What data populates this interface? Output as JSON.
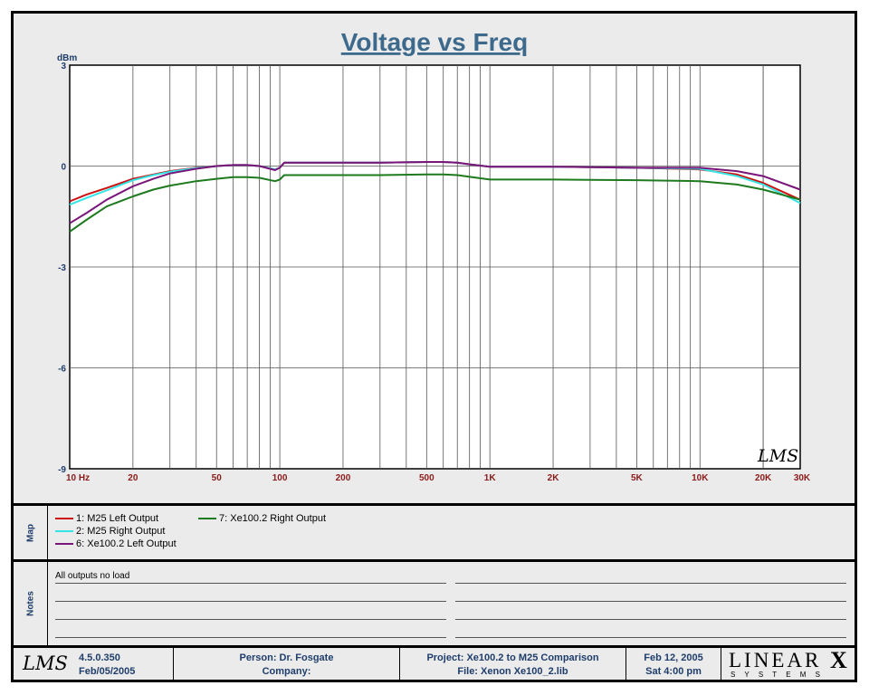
{
  "chart_data": {
    "type": "line",
    "title": "Voltage vs Freq",
    "ylabel": "dBm",
    "xscale": "log",
    "xlim": [
      10,
      30000
    ],
    "ylim": [
      -9,
      3
    ],
    "grid": true,
    "yticks": [
      3,
      0,
      -3,
      -6,
      -9
    ],
    "ytick_labels": [
      "3",
      "0",
      "-3",
      "-6",
      "-9"
    ],
    "xtick_values": [
      10,
      20,
      50,
      100,
      200,
      500,
      1000,
      2000,
      5000,
      10000,
      20000,
      30000
    ],
    "xtick_labels": [
      "10  Hz",
      "20",
      "50",
      "100",
      "200",
      "500",
      "1K",
      "2K",
      "5K",
      "10K",
      "20K",
      "30K"
    ],
    "colors": {
      "m25_left": "#cc1111",
      "m25_right": "#33e5e5",
      "xe_left": "#7a157a",
      "xe_right": "#1e7a1e",
      "title": "#3d6a8c",
      "axis_labels": "#1f3d6b",
      "x_labels": "#8b1a1a"
    },
    "series": [
      {
        "name": "1: M25 Left Output",
        "color": "#cc1111",
        "x": [
          10,
          12,
          15,
          20,
          25,
          30,
          40,
          50,
          60,
          70,
          80,
          95,
          100,
          105,
          150,
          200,
          300,
          500,
          600,
          700,
          800,
          1000,
          2000,
          5000,
          10000,
          15000,
          20000,
          30000
        ],
        "y": [
          -1.05,
          -0.85,
          -0.65,
          -0.38,
          -0.25,
          -0.15,
          -0.05,
          0.0,
          0.03,
          0.03,
          0.0,
          -0.1,
          -0.05,
          0.1,
          0.1,
          0.1,
          0.1,
          0.12,
          0.12,
          0.1,
          0.05,
          -0.02,
          -0.02,
          -0.05,
          -0.1,
          -0.25,
          -0.5,
          -1.0
        ]
      },
      {
        "name": "2: M25 Right Output",
        "color": "#33e5e5",
        "x": [
          10,
          12,
          15,
          20,
          25,
          30,
          40,
          50,
          60,
          70,
          80,
          95,
          100,
          105,
          150,
          200,
          300,
          500,
          600,
          700,
          800,
          1000,
          2000,
          5000,
          10000,
          15000,
          20000,
          30000
        ],
        "y": [
          -1.15,
          -0.95,
          -0.72,
          -0.42,
          -0.27,
          -0.17,
          -0.06,
          0.0,
          0.03,
          0.03,
          0.0,
          -0.1,
          -0.05,
          0.1,
          0.1,
          0.1,
          0.1,
          0.12,
          0.12,
          0.1,
          0.05,
          -0.02,
          -0.02,
          -0.05,
          -0.08,
          -0.3,
          -0.55,
          -1.1
        ]
      },
      {
        "name": "6: Xe100.2 Left Output",
        "color": "#7a157a",
        "x": [
          10,
          12,
          15,
          20,
          25,
          30,
          40,
          50,
          60,
          70,
          80,
          95,
          100,
          105,
          150,
          200,
          300,
          500,
          600,
          700,
          800,
          1000,
          2000,
          5000,
          10000,
          15000,
          20000,
          30000
        ],
        "y": [
          -1.7,
          -1.4,
          -1.0,
          -0.6,
          -0.38,
          -0.22,
          -0.08,
          0.0,
          0.03,
          0.03,
          0.0,
          -0.12,
          -0.05,
          0.1,
          0.1,
          0.1,
          0.1,
          0.12,
          0.12,
          0.1,
          0.05,
          -0.02,
          -0.02,
          -0.05,
          -0.05,
          -0.15,
          -0.3,
          -0.7
        ]
      },
      {
        "name": "7: Xe100.2 Right Output",
        "color": "#1e7a1e",
        "x": [
          10,
          12,
          15,
          20,
          25,
          30,
          40,
          50,
          60,
          70,
          80,
          95,
          100,
          105,
          150,
          200,
          300,
          500,
          600,
          700,
          800,
          1000,
          2000,
          5000,
          10000,
          15000,
          20000,
          30000
        ],
        "y": [
          -1.95,
          -1.6,
          -1.2,
          -0.9,
          -0.7,
          -0.58,
          -0.45,
          -0.38,
          -0.33,
          -0.33,
          -0.35,
          -0.45,
          -0.4,
          -0.27,
          -0.27,
          -0.27,
          -0.27,
          -0.25,
          -0.25,
          -0.27,
          -0.32,
          -0.4,
          -0.4,
          -0.42,
          -0.45,
          -0.55,
          -0.7,
          -1.0
        ]
      }
    ]
  },
  "legend": [
    {
      "label": "1: M25 Left Output",
      "color": "#cc1111"
    },
    {
      "label": "2: M25 Right Output",
      "color": "#33e5e5"
    },
    {
      "label": "6: Xe100.2 Left Output",
      "color": "#7a157a"
    },
    {
      "label": "7: Xe100.2 Right Output",
      "color": "#1e7a1e"
    }
  ],
  "panels": {
    "map_label": "Map",
    "notes_label": "Notes"
  },
  "notes": {
    "line1": "All outputs no load"
  },
  "footer": {
    "version": "4.5.0.350",
    "version_date": "Feb/05/2005",
    "person": "Person: Dr. Fosgate",
    "company": "Company:",
    "project": "Project: Xe100.2 to M25 Comparison",
    "file": "File: Xenon Xe100_2.lib",
    "date": "Feb 12, 2005",
    "time": "Sat  4:00 pm",
    "logo_lms": "LMS",
    "logo_brand_main": "LINEAR",
    "logo_brand_x": "X",
    "logo_brand_sub": "S Y S T E M S"
  }
}
